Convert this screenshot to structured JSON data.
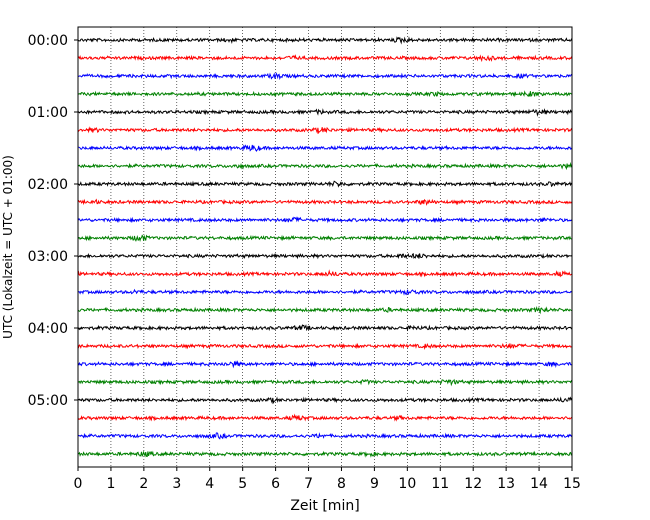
{
  "chart_data": {
    "type": "line",
    "title": "",
    "xlabel": "Zeit  [min]",
    "ylabel": "UTC (Lokalzeit = UTC + 01:00)",
    "xlim": [
      0,
      15
    ],
    "x_ticks": [
      "0",
      "1",
      "2",
      "3",
      "4",
      "5",
      "6",
      "7",
      "8",
      "9",
      "10",
      "11",
      "12",
      "13",
      "14",
      "15"
    ],
    "y_ticks": [
      "00:00",
      "01:00",
      "02:00",
      "03:00",
      "04:00",
      "05:00"
    ],
    "grid": "vertical dotted lines at every minute",
    "color_cycle": [
      "#000000",
      "#ff0000",
      "#0000ff",
      "#008000"
    ],
    "trace_interval_minutes": 15,
    "trace_starts": [
      "00:00",
      "00:15",
      "00:30",
      "00:45",
      "01:00",
      "01:15",
      "01:30",
      "01:45",
      "02:00",
      "02:15",
      "02:30",
      "02:45",
      "03:00",
      "03:15",
      "03:30",
      "03:45",
      "04:00",
      "04:15",
      "04:30",
      "04:45",
      "05:00",
      "05:15",
      "05:30",
      "05:45"
    ]
  }
}
